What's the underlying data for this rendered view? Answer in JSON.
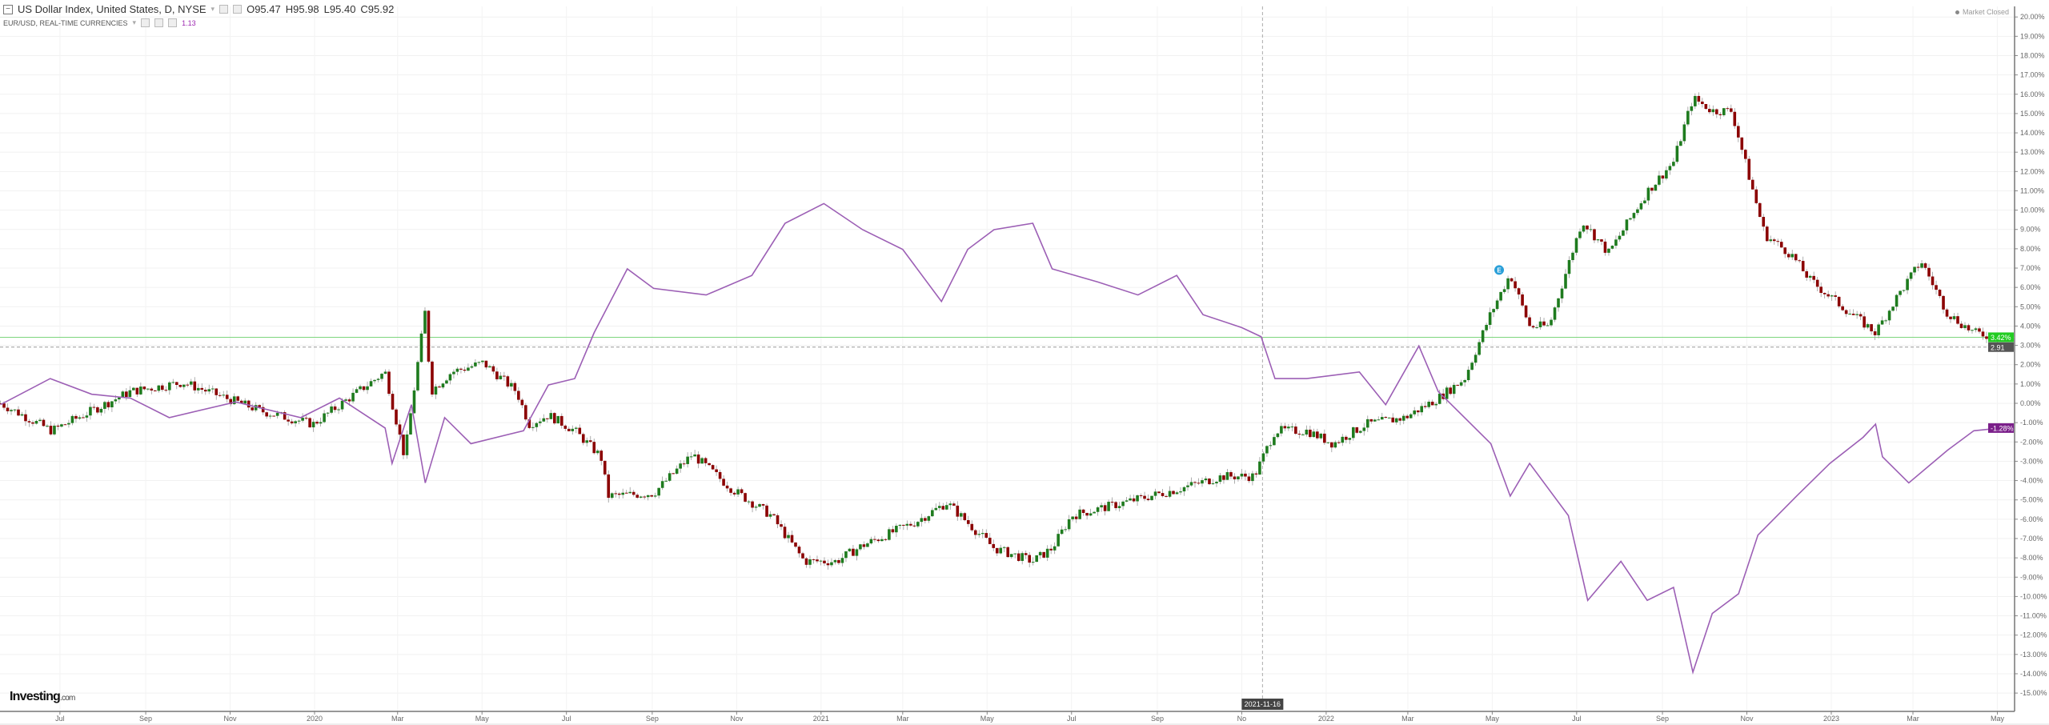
{
  "header": {
    "title": "US Dollar Index, United States, D, NYSE",
    "open": "O95.47",
    "high": "H95.98",
    "low": "L95.40",
    "close": "C95.92",
    "compare_label": "EUR/USD, REAL-TIME CURRENCIES",
    "compare_value": "1.13",
    "market_status": "Market Closed"
  },
  "logo": {
    "main": "Investing",
    "suffix": ".com"
  },
  "chart_data": {
    "type": "candlestick+line",
    "yaxis": {
      "range": [
        -15,
        20
      ],
      "unit": "%",
      "ticks": [
        "20.00%",
        "19.00%",
        "18.00%",
        "17.00%",
        "16.00%",
        "15.00%",
        "14.00%",
        "13.00%",
        "12.00%",
        "11.00%",
        "10.00%",
        "9.00%",
        "8.00%",
        "7.00%",
        "6.00%",
        "5.00%",
        "4.00%",
        "3.00%",
        "2.00%",
        "1.00%",
        "0.00%",
        "-1.00%",
        "-2.00%",
        "-3.00%",
        "-4.00%",
        "-5.00%",
        "-6.00%",
        "-7.00%",
        "-8.00%",
        "-9.00%",
        "-10.00%",
        "-11.00%",
        "-12.00%",
        "-13.00%",
        "-14.00%",
        "-15.00%"
      ],
      "position": "right"
    },
    "xaxis": {
      "range": [
        "2019-05-19",
        "2023-05-08"
      ],
      "ticks": [
        {
          "date": "2019-07-01",
          "label": "Jul"
        },
        {
          "date": "2019-09-01",
          "label": "Sep"
        },
        {
          "date": "2019-11-01",
          "label": "Nov"
        },
        {
          "date": "2020-01-01",
          "label": "2020"
        },
        {
          "date": "2020-03-01",
          "label": "Mar"
        },
        {
          "date": "2020-05-01",
          "label": "May"
        },
        {
          "date": "2020-07-01",
          "label": "Jul"
        },
        {
          "date": "2020-09-01",
          "label": "Sep"
        },
        {
          "date": "2020-11-01",
          "label": "Nov"
        },
        {
          "date": "2021-01-01",
          "label": "2021"
        },
        {
          "date": "2021-03-01",
          "label": "Mar"
        },
        {
          "date": "2021-05-01",
          "label": "May"
        },
        {
          "date": "2021-07-01",
          "label": "Jul"
        },
        {
          "date": "2021-09-01",
          "label": "Sep"
        },
        {
          "date": "2021-11-01",
          "label": "No"
        },
        {
          "date": "2022-01-01",
          "label": "2022"
        },
        {
          "date": "2022-03-01",
          "label": "Mar"
        },
        {
          "date": "2022-05-01",
          "label": "May"
        },
        {
          "date": "2022-07-01",
          "label": "Jul"
        },
        {
          "date": "2022-09-01",
          "label": "Sep"
        },
        {
          "date": "2022-11-01",
          "label": "Nov"
        },
        {
          "date": "2023-01-01",
          "label": "2023"
        },
        {
          "date": "2023-03-01",
          "label": "Mar"
        },
        {
          "date": "2023-05-01",
          "label": "May"
        }
      ]
    },
    "grid": true,
    "crosshair": {
      "date": "2021-11-16",
      "label": "2021-11-16"
    },
    "series": [
      {
        "name": "US Dollar Index",
        "style": "candlestick",
        "up_color": "#1e7b1e",
        "down_color": "#8b0000",
        "last_label": "3.42%",
        "last_value": 3.42,
        "label_color": "#22cc22",
        "ref_value": 2.91,
        "ref_label": "2.91",
        "points": [
          [
            "2019-05-19",
            0.0
          ],
          [
            "2019-06-25",
            -1.42
          ],
          [
            "2019-08-21",
            0.61
          ],
          [
            "2019-09-28",
            1.08
          ],
          [
            "2019-11-24",
            -0.41
          ],
          [
            "2019-12-31",
            -1.08
          ],
          [
            "2020-02-21",
            1.62
          ],
          [
            "2020-03-06",
            -2.77
          ],
          [
            "2020-03-21",
            4.8
          ],
          [
            "2020-03-25",
            0.61
          ],
          [
            "2020-04-09",
            1.62
          ],
          [
            "2020-05-02",
            2.09
          ],
          [
            "2020-05-26",
            0.61
          ],
          [
            "2020-06-04",
            -1.08
          ],
          [
            "2020-06-18",
            -0.61
          ],
          [
            "2020-07-07",
            -1.42
          ],
          [
            "2020-07-26",
            -2.77
          ],
          [
            "2020-07-31",
            -4.8
          ],
          [
            "2020-09-02",
            -4.66
          ],
          [
            "2020-09-30",
            -2.64
          ],
          [
            "2020-10-29",
            -4.46
          ],
          [
            "2020-11-26",
            -5.81
          ],
          [
            "2020-12-20",
            -8.18
          ],
          [
            "2021-01-12",
            -8.18
          ],
          [
            "2021-01-31",
            -7.36
          ],
          [
            "2021-03-10",
            -6.15
          ],
          [
            "2021-04-02",
            -5.14
          ],
          [
            "2021-05-06",
            -7.5
          ],
          [
            "2021-06-03",
            -8.18
          ],
          [
            "2021-06-17",
            -7.5
          ],
          [
            "2021-07-01",
            -5.81
          ],
          [
            "2021-08-08",
            -5.14
          ],
          [
            "2021-09-15",
            -4.46
          ],
          [
            "2021-10-18",
            -3.78
          ],
          [
            "2021-11-10",
            -3.78
          ],
          [
            "2021-11-25",
            -1.42
          ],
          [
            "2021-12-18",
            -1.42
          ],
          [
            "2022-01-06",
            -2.09
          ],
          [
            "2022-01-30",
            -1.08
          ],
          [
            "2022-02-27",
            -0.74
          ],
          [
            "2022-03-23",
            0.27
          ],
          [
            "2022-04-11",
            1.28
          ],
          [
            "2022-04-30",
            4.66
          ],
          [
            "2022-05-14",
            6.69
          ],
          [
            "2022-05-28",
            3.99
          ],
          [
            "2022-06-11",
            3.99
          ],
          [
            "2022-07-05",
            9.46
          ],
          [
            "2022-07-24",
            7.77
          ],
          [
            "2022-08-21",
            10.95
          ],
          [
            "2022-09-09",
            12.5
          ],
          [
            "2022-09-23",
            15.8
          ],
          [
            "2022-10-07",
            15.14
          ],
          [
            "2022-10-21",
            15.14
          ],
          [
            "2022-10-31",
            12.43
          ],
          [
            "2022-11-14",
            8.72
          ],
          [
            "2022-12-03",
            7.7
          ],
          [
            "2022-12-17",
            6.35
          ],
          [
            "2023-01-09",
            5.0
          ],
          [
            "2023-02-02",
            3.65
          ],
          [
            "2023-02-16",
            5.34
          ],
          [
            "2023-03-07",
            7.36
          ],
          [
            "2023-03-26",
            4.66
          ],
          [
            "2023-04-14",
            3.65
          ],
          [
            "2023-05-03",
            3.42
          ]
        ]
      },
      {
        "name": "EUR/USD",
        "style": "line",
        "color": "#9c5fb5",
        "last_label": "-1.28%",
        "last_value": -1.28,
        "label_color": "#7b1f8a",
        "points": [
          [
            "2019-05-19",
            -0.07
          ],
          [
            "2019-06-24",
            1.28
          ],
          [
            "2019-07-24",
            0.47
          ],
          [
            "2019-08-21",
            0.27
          ],
          [
            "2019-09-18",
            -0.74
          ],
          [
            "2019-11-05",
            0.07
          ],
          [
            "2019-12-22",
            -0.74
          ],
          [
            "2020-01-19",
            0.27
          ],
          [
            "2020-02-21",
            -1.28
          ],
          [
            "2020-02-26",
            -3.11
          ],
          [
            "2020-03-11",
            -0.07
          ],
          [
            "2020-03-21",
            -4.12
          ],
          [
            "2020-04-04",
            -0.74
          ],
          [
            "2020-04-23",
            -2.09
          ],
          [
            "2020-05-31",
            -1.42
          ],
          [
            "2020-06-18",
            0.95
          ],
          [
            "2020-07-07",
            1.28
          ],
          [
            "2020-07-21",
            3.65
          ],
          [
            "2020-08-14",
            6.96
          ],
          [
            "2020-09-02",
            5.95
          ],
          [
            "2020-10-10",
            5.61
          ],
          [
            "2020-11-12",
            6.62
          ],
          [
            "2020-12-06",
            9.32
          ],
          [
            "2021-01-03",
            10.34
          ],
          [
            "2021-01-31",
            8.99
          ],
          [
            "2021-03-01",
            7.97
          ],
          [
            "2021-03-29",
            5.27
          ],
          [
            "2021-04-17",
            7.97
          ],
          [
            "2021-05-06",
            8.99
          ],
          [
            "2021-06-03",
            9.32
          ],
          [
            "2021-06-17",
            6.96
          ],
          [
            "2021-07-20",
            6.28
          ],
          [
            "2021-08-18",
            5.61
          ],
          [
            "2021-09-15",
            6.62
          ],
          [
            "2021-10-04",
            4.59
          ],
          [
            "2021-11-01",
            3.92
          ],
          [
            "2021-11-15",
            3.45
          ],
          [
            "2021-11-25",
            1.28
          ],
          [
            "2021-12-18",
            1.28
          ],
          [
            "2022-01-25",
            1.62
          ],
          [
            "2022-02-13",
            -0.07
          ],
          [
            "2022-03-09",
            2.97
          ],
          [
            "2022-03-23",
            0.61
          ],
          [
            "2022-04-30",
            -2.09
          ],
          [
            "2022-05-14",
            -4.8
          ],
          [
            "2022-05-28",
            -3.11
          ],
          [
            "2022-06-25",
            -5.81
          ],
          [
            "2022-07-09",
            -10.2
          ],
          [
            "2022-08-02",
            -8.18
          ],
          [
            "2022-08-21",
            -10.2
          ],
          [
            "2022-09-09",
            -9.53
          ],
          [
            "2022-09-23",
            -13.92
          ],
          [
            "2022-10-07",
            -10.88
          ],
          [
            "2022-10-26",
            -9.86
          ],
          [
            "2022-11-09",
            -6.82
          ],
          [
            "2022-12-07",
            -4.8
          ],
          [
            "2022-12-31",
            -3.11
          ],
          [
            "2023-01-24",
            -1.76
          ],
          [
            "2023-02-02",
            -1.08
          ],
          [
            "2023-02-07",
            -2.77
          ],
          [
            "2023-02-26",
            -4.12
          ],
          [
            "2023-03-26",
            -2.43
          ],
          [
            "2023-04-14",
            -1.42
          ],
          [
            "2023-05-03",
            -1.28
          ]
        ]
      }
    ],
    "annotations": [
      {
        "date": "2022-05-06",
        "value": 6.9,
        "label": "E",
        "color": "#2a9fd8"
      }
    ]
  }
}
